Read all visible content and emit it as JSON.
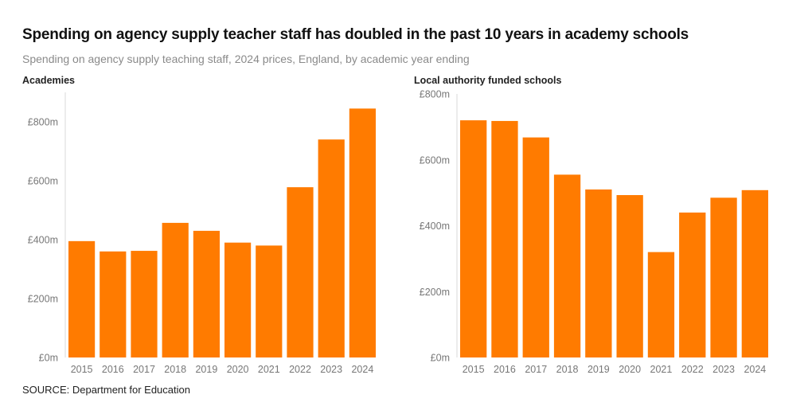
{
  "title": "Spending on agency supply teacher staff has doubled in the past 10 years in academy schools",
  "subtitle": "Spending on agency supply teaching staff, 2024 prices, England, by academic year ending",
  "source": "SOURCE: Department for Education",
  "colors": {
    "bar": "#ff7b00",
    "tick": "#777777"
  },
  "chart_data": [
    {
      "type": "bar",
      "title": "Academies",
      "categories": [
        "2015",
        "2016",
        "2017",
        "2018",
        "2019",
        "2020",
        "2021",
        "2022",
        "2023",
        "2024"
      ],
      "values": [
        395,
        360,
        362,
        457,
        430,
        390,
        380,
        578,
        740,
        845
      ],
      "ylim": [
        0,
        900
      ],
      "yticks": [
        0,
        200,
        400,
        600,
        800
      ],
      "ytick_labels": [
        "£0m",
        "£200m",
        "£400m",
        "£600m",
        "£800m"
      ],
      "xlabel": "",
      "ylabel": ""
    },
    {
      "type": "bar",
      "title": "Local authority funded schools",
      "categories": [
        "2015",
        "2016",
        "2017",
        "2018",
        "2019",
        "2020",
        "2021",
        "2022",
        "2023",
        "2024"
      ],
      "values": [
        720,
        718,
        668,
        555,
        510,
        493,
        320,
        440,
        485,
        508
      ],
      "ylim": [
        0,
        800
      ],
      "yticks": [
        0,
        200,
        400,
        600,
        800
      ],
      "ytick_labels": [
        "£0m",
        "£200m",
        "£400m",
        "£600m",
        "£800m"
      ],
      "xlabel": "",
      "ylabel": ""
    }
  ]
}
